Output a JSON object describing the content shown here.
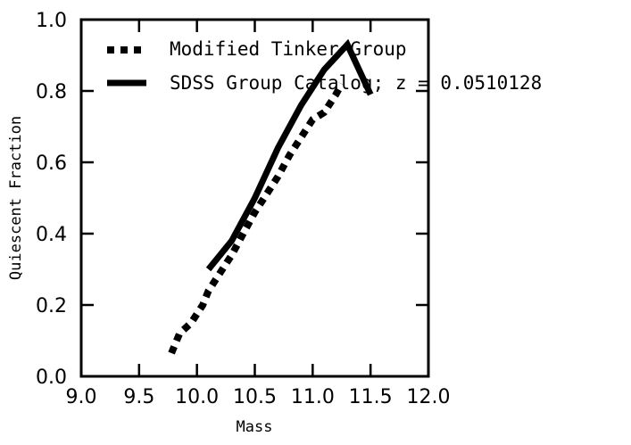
{
  "chart_data": {
    "type": "line",
    "xlabel": "Mass",
    "ylabel": "Quiescent Fraction",
    "xlim": [
      9.0,
      12.0
    ],
    "ylim": [
      0.0,
      1.0
    ],
    "x_ticks": [
      "9.0",
      "9.5",
      "10.0",
      "10.5",
      "11.0",
      "11.5",
      "12.0"
    ],
    "y_ticks": [
      "0.0",
      "0.2",
      "0.4",
      "0.6",
      "0.8",
      "1.0"
    ],
    "grid": false,
    "legend_position": "top-left",
    "series": [
      {
        "name": "Modified Tinker Group",
        "style": "dotted",
        "color": "#000000",
        "x": [
          9.78,
          9.85,
          9.95,
          10.05,
          10.1,
          10.2,
          10.3,
          10.4,
          10.5,
          10.6,
          10.7,
          10.8,
          10.9,
          11.0,
          11.1,
          11.2,
          11.25
        ],
        "y": [
          0.065,
          0.12,
          0.15,
          0.2,
          0.24,
          0.29,
          0.34,
          0.4,
          0.46,
          0.51,
          0.56,
          0.62,
          0.67,
          0.72,
          0.74,
          0.79,
          0.82
        ]
      },
      {
        "name": "SDSS Group Catalog; z = 0.0510128",
        "style": "solid",
        "color": "#000000",
        "x": [
          10.1,
          10.3,
          10.5,
          10.7,
          10.9,
          11.1,
          11.3,
          11.5
        ],
        "y": [
          0.3,
          0.38,
          0.5,
          0.64,
          0.76,
          0.86,
          0.93,
          0.79
        ]
      }
    ]
  }
}
